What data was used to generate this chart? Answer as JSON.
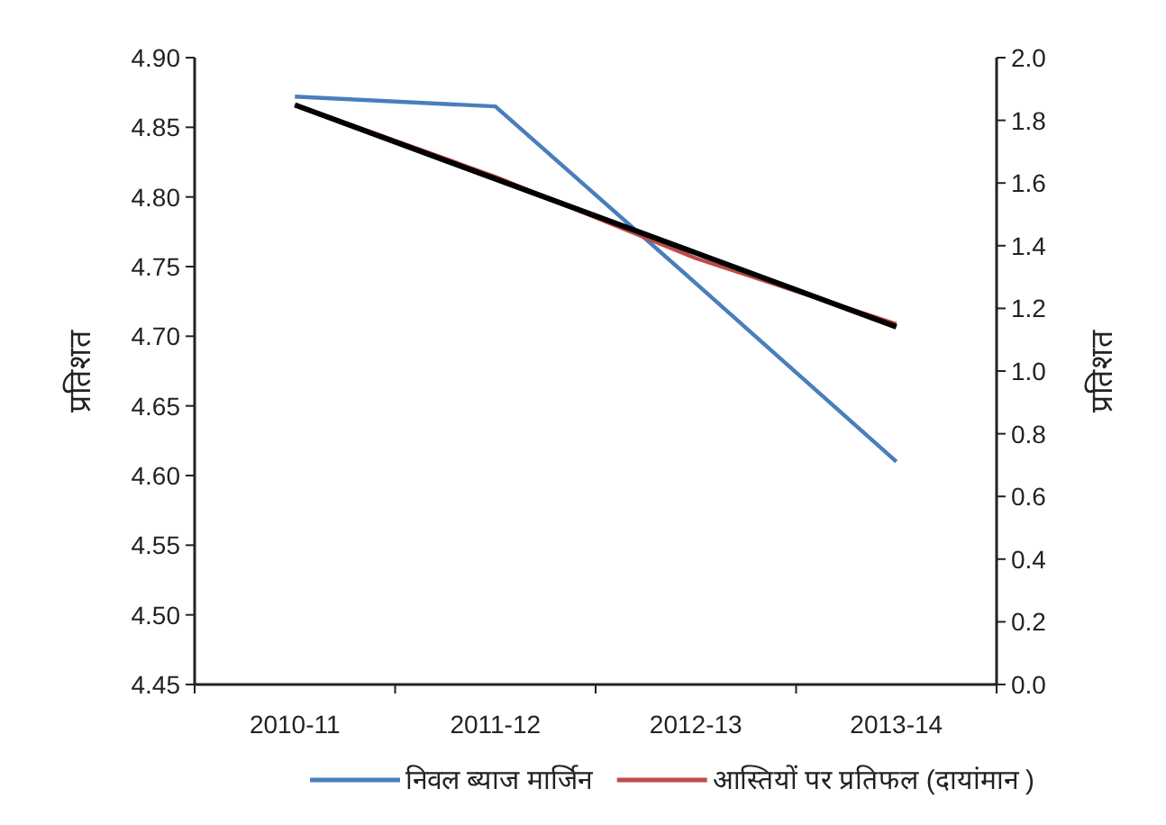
{
  "chart_data": {
    "type": "line",
    "categories": [
      "2010-11",
      "2011-12",
      "2012-13",
      "2013-14"
    ],
    "series": [
      {
        "name": "निवल ब्याज मार्जिन",
        "color": "#4a7ebb",
        "values": [
          4.872,
          4.865,
          4.738,
          4.61
        ]
      },
      {
        "name": "आस्तियों पर प्रतिफल (दायांमान )",
        "color": "#be4b48",
        "values": [
          1.85,
          1.62,
          1.36,
          1.15
        ],
        "axis": "y2"
      },
      {
        "color": "#000000",
        "values": [
          1.849,
          1.613,
          1.377,
          1.141
        ],
        "axis": "y2"
      }
    ],
    "ylim": [
      4.45,
      4.9
    ],
    "yticks": [
      {
        "value": 4.45,
        "label": "4.45"
      },
      {
        "value": 4.5,
        "label": "4.50"
      },
      {
        "value": 4.55,
        "label": "4.55"
      },
      {
        "value": 4.6,
        "label": "4.60"
      },
      {
        "value": 4.65,
        "label": "4.65"
      },
      {
        "value": 4.7,
        "label": "4.70"
      },
      {
        "value": 4.75,
        "label": "4.75"
      },
      {
        "value": 4.8,
        "label": "4.80"
      },
      {
        "value": 4.85,
        "label": "4.85"
      },
      {
        "value": 4.9,
        "label": "4.90"
      }
    ],
    "y2lim": [
      0,
      2
    ],
    "y2ticks": [
      {
        "value": 0,
        "label": "0.0"
      },
      {
        "value": 0.2,
        "label": "0.2"
      },
      {
        "value": 0.4,
        "label": "0.4"
      },
      {
        "value": 0.6,
        "label": "0.6"
      },
      {
        "value": 0.8,
        "label": "0.8"
      },
      {
        "value": 1,
        "label": "1.0"
      },
      {
        "value": 1.2,
        "label": "1.2"
      },
      {
        "value": 1.4,
        "label": "1.4"
      },
      {
        "value": 1.6,
        "label": "1.6"
      },
      {
        "value": 1.8,
        "label": "1.8"
      },
      {
        "value": 2,
        "label": "2.0"
      }
    ],
    "ylabel": "प्रतिशत",
    "y2label": "प्रतिशत",
    "legend": "bottom",
    "grid": false,
    "marker": "none",
    "line_style": "solid"
  }
}
